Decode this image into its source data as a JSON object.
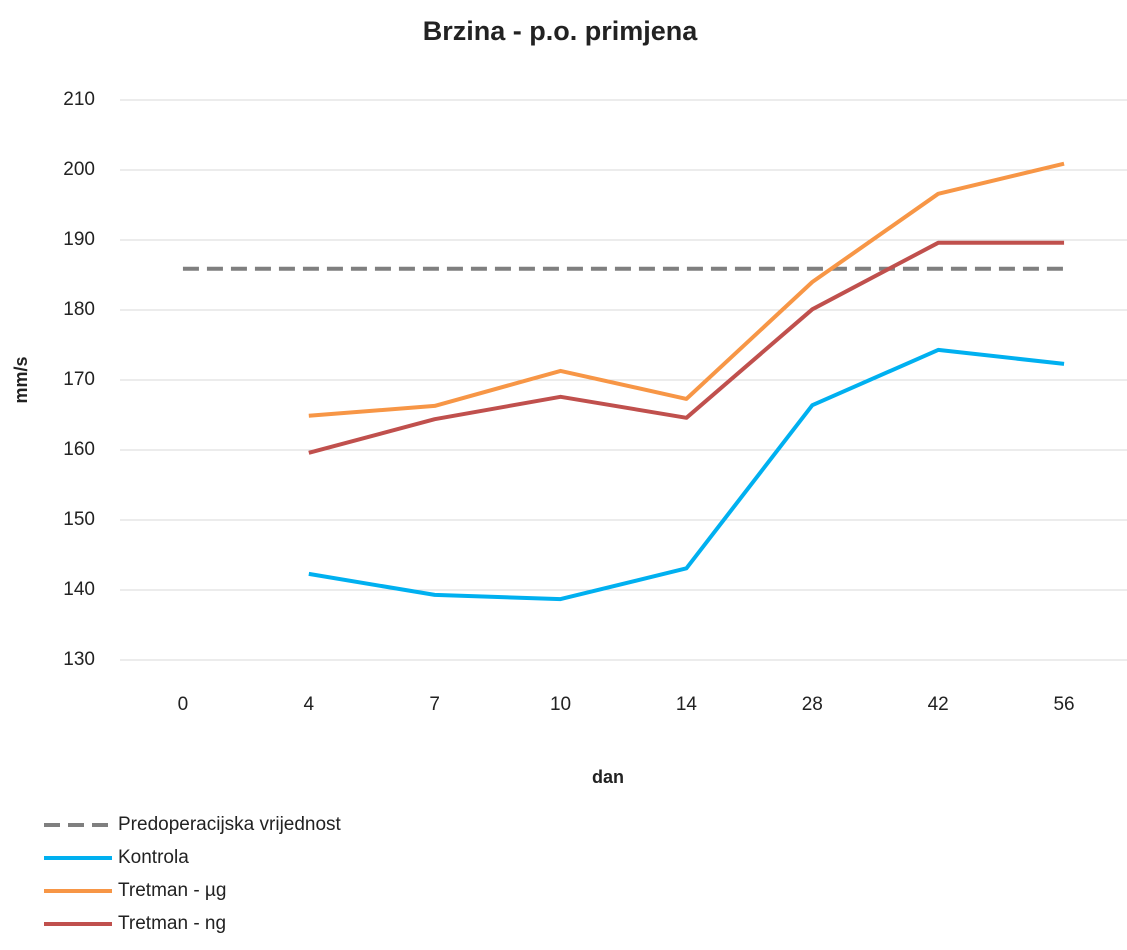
{
  "chart_data": {
    "type": "line",
    "title": "Brzina - p.o. primjena",
    "x_label": "dan",
    "y_label": "mm/s",
    "categories": [
      "0",
      "4",
      "7",
      "10",
      "14",
      "28",
      "42",
      "56"
    ],
    "series": [
      {
        "name": "Predoperacijska vrijednost",
        "color": "#7f7f7f",
        "dashed": true,
        "values": [
          185.9,
          185.9,
          185.9,
          185.9,
          185.9,
          185.9,
          185.9,
          185.9
        ]
      },
      {
        "name": "Kontrola",
        "color": "#00b0f0",
        "values": [
          null,
          142.3,
          139.3,
          138.7,
          143.1,
          166.4,
          174.3,
          172.3
        ]
      },
      {
        "name": "Tretman - µg",
        "color": "#f79646",
        "values": [
          null,
          164.9,
          166.3,
          171.3,
          167.3,
          184,
          196.6,
          200.9
        ]
      },
      {
        "name": "Tretman - ng",
        "color": "#c0504d",
        "values": [
          null,
          159.6,
          164.4,
          167.6,
          164.6,
          180.1,
          189.6,
          189.6
        ]
      }
    ],
    "ylim": [
      130,
      210
    ],
    "yticks": [
      130,
      140,
      150,
      160,
      170,
      180,
      190,
      200,
      210
    ],
    "grid": true,
    "legend": "bottom-left"
  }
}
